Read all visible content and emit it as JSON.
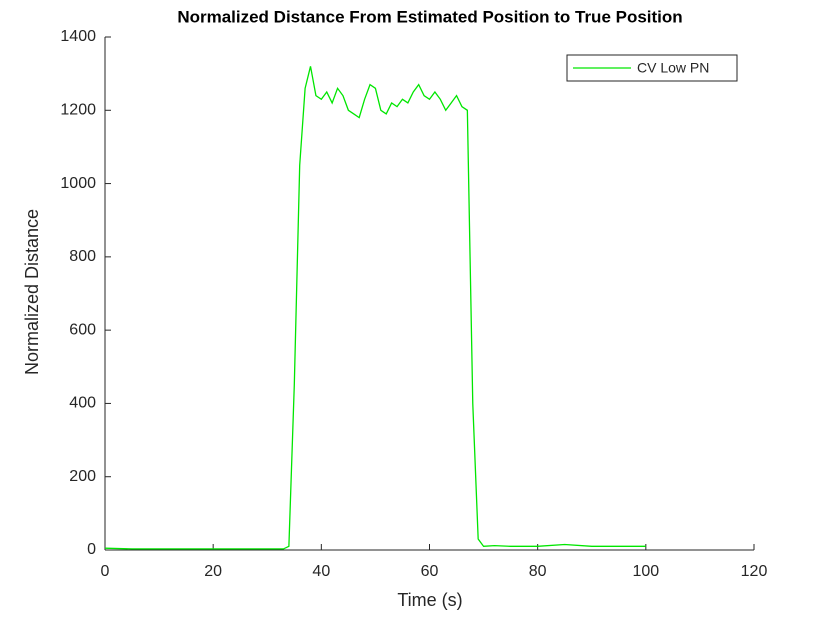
{
  "chart_data": {
    "type": "line",
    "title": "Normalized Distance From Estimated Position to True Position",
    "x_label": "Time (s)",
    "y_label": "Normalized Distance",
    "x": [
      0,
      5,
      10,
      15,
      20,
      25,
      30,
      33,
      34,
      35,
      36,
      37,
      38,
      39,
      40,
      41,
      42,
      43,
      44,
      45,
      46,
      47,
      48,
      49,
      50,
      51,
      52,
      53,
      54,
      55,
      56,
      57,
      58,
      59,
      60,
      61,
      62,
      63,
      64,
      65,
      66,
      67,
      68,
      69,
      70,
      72,
      75,
      78,
      80,
      85,
      90,
      95,
      100
    ],
    "series": [
      {
        "name": "CV Low PN",
        "color": "#00e600",
        "values": [
          5,
          3,
          3,
          3,
          3,
          3,
          3,
          3,
          10,
          450,
          1050,
          1260,
          1320,
          1240,
          1230,
          1250,
          1220,
          1260,
          1240,
          1200,
          1190,
          1180,
          1230,
          1270,
          1260,
          1200,
          1190,
          1220,
          1210,
          1230,
          1220,
          1250,
          1270,
          1240,
          1230,
          1250,
          1230,
          1200,
          1220,
          1240,
          1210,
          1200,
          400,
          30,
          10,
          12,
          10,
          10,
          10,
          15,
          10,
          10,
          10
        ]
      }
    ],
    "xlim": [
      0,
      120
    ],
    "xticks": [
      0,
      20,
      40,
      60,
      80,
      100,
      120
    ],
    "ylim": [
      0,
      1400
    ],
    "yticks": [
      0,
      200,
      400,
      600,
      800,
      1000,
      1200,
      1400
    ],
    "legend": "upper right"
  }
}
